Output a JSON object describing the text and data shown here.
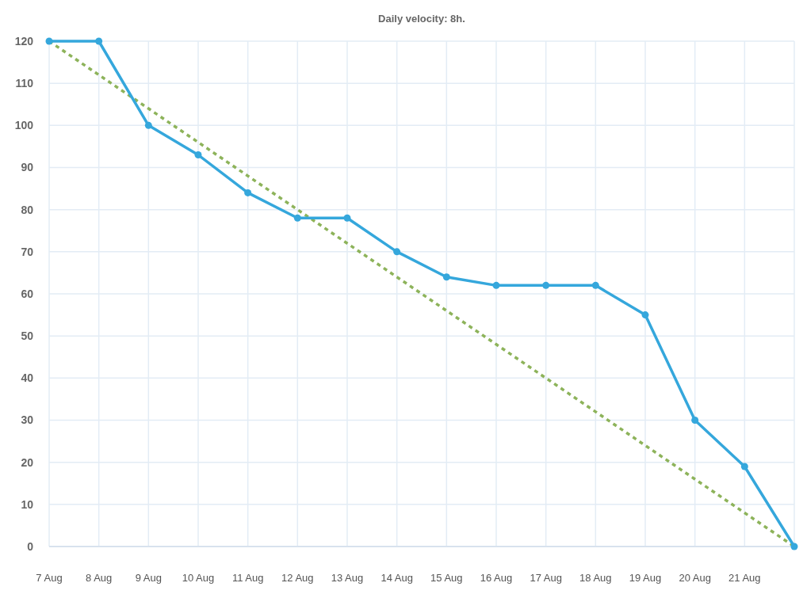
{
  "chart_data": {
    "type": "line",
    "title": "Daily velocity: 8h.",
    "categories": [
      "7 Aug",
      "8 Aug",
      "9 Aug",
      "10 Aug",
      "11 Aug",
      "12 Aug",
      "13 Aug",
      "14 Aug",
      "15 Aug",
      "16 Aug",
      "17 Aug",
      "18 Aug",
      "19 Aug",
      "20 Aug",
      "21 Aug",
      null
    ],
    "ylim": [
      0,
      120
    ],
    "yticks": [
      0,
      10,
      20,
      30,
      40,
      50,
      60,
      70,
      80,
      90,
      100,
      110,
      120
    ],
    "grid": true,
    "marker": "circle",
    "series": [
      {
        "color": "#8db35a",
        "line_style": "dotted",
        "marker": "none",
        "values": [
          120,
          112,
          104,
          96,
          88,
          80,
          72,
          64,
          56,
          48,
          40,
          32,
          24,
          16,
          8,
          0
        ]
      },
      {
        "color": "#35a7dc",
        "line_style": "solid",
        "values": [
          120,
          120,
          100,
          93,
          84,
          78,
          78,
          70,
          64,
          62,
          62,
          62,
          55,
          30,
          19,
          0
        ]
      }
    ]
  }
}
